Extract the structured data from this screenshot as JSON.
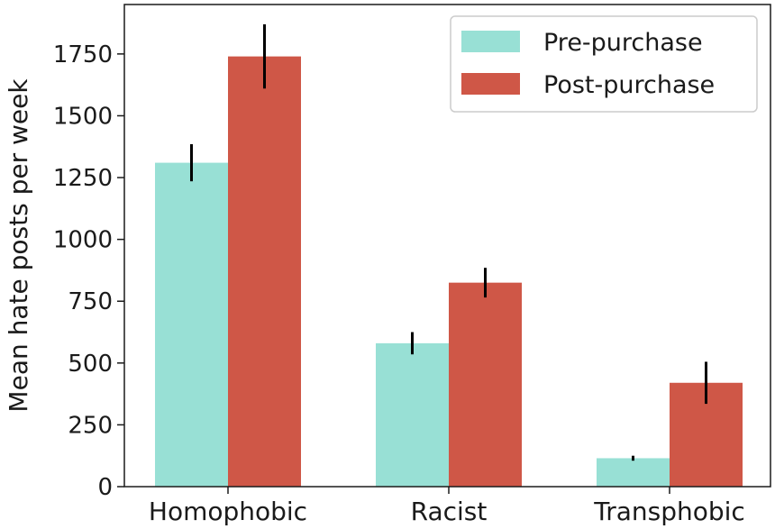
{
  "chart_data": {
    "type": "bar",
    "title": "",
    "xlabel": "",
    "ylabel": "Mean hate posts per week",
    "categories": [
      "Homophobic",
      "Racist",
      "Transphobic"
    ],
    "series": [
      {
        "name": "Pre-purchase",
        "values": [
          1310,
          580,
          115
        ],
        "errors": [
          75,
          45,
          10
        ],
        "color": "#98e0d5"
      },
      {
        "name": "Post-purchase",
        "values": [
          1740,
          825,
          420
        ],
        "errors": [
          130,
          60,
          85
        ],
        "color": "#cf5747"
      }
    ],
    "ylim": [
      0,
      1950
    ],
    "yticks": [
      0,
      250,
      500,
      750,
      1000,
      1250,
      1500,
      1750
    ],
    "grid": false,
    "legend_position": "top-right"
  }
}
